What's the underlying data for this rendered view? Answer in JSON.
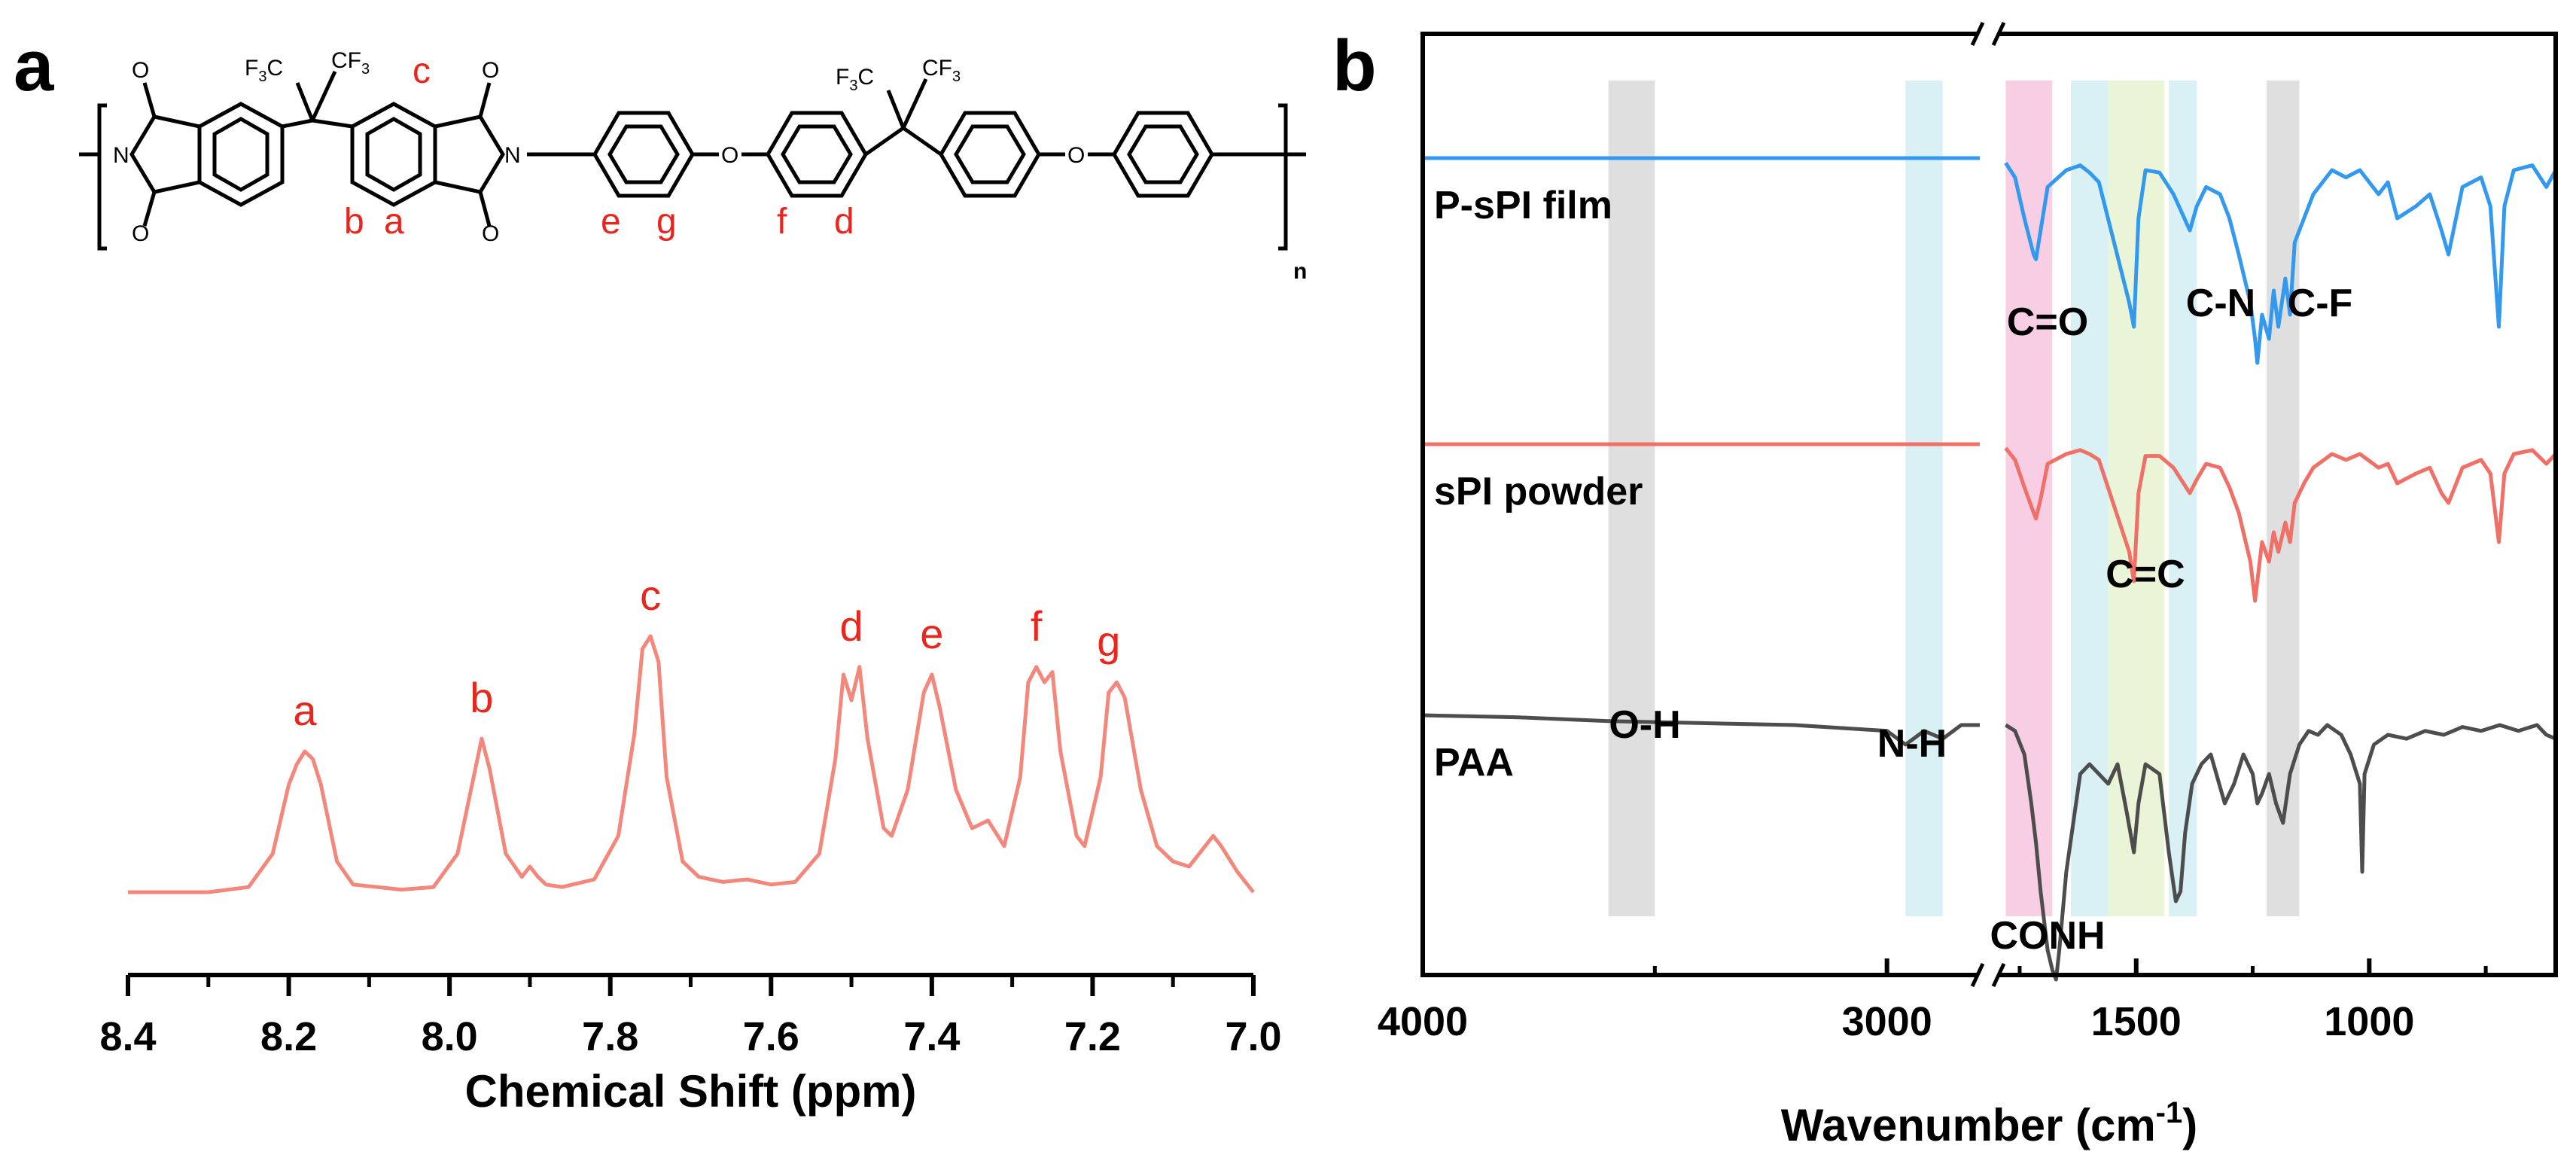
{
  "panels": {
    "a": {
      "letter": "a"
    },
    "b": {
      "letter": "b"
    }
  },
  "structure": {
    "proton_labels": [
      "c",
      "b",
      "a",
      "e",
      "g",
      "f",
      "d"
    ],
    "repeat_subscript": "n",
    "substituent": "CF3"
  },
  "chart_data": [
    {
      "type": "line",
      "xlabel": "Chemical Shift (ppm)",
      "ylabel": "",
      "xlim": [
        8.4,
        7.0
      ],
      "x_reversed": true,
      "xticks": [
        "8.4",
        "8.2",
        "8.0",
        "7.8",
        "7.6",
        "7.4",
        "7.2",
        "7.0"
      ],
      "grid": false,
      "series": [
        {
          "color": "#f4877c",
          "x": [
            8.4,
            8.3,
            8.25,
            8.22,
            8.2,
            8.19,
            8.18,
            8.17,
            8.16,
            8.14,
            8.12,
            8.09,
            8.06,
            8.02,
            7.99,
            7.97,
            7.96,
            7.95,
            7.93,
            7.91,
            7.9,
            7.89,
            7.88,
            7.86,
            7.82,
            7.79,
            7.77,
            7.76,
            7.75,
            7.74,
            7.73,
            7.71,
            7.69,
            7.66,
            7.63,
            7.6,
            7.57,
            7.54,
            7.52,
            7.51,
            7.5,
            7.49,
            7.48,
            7.46,
            7.45,
            7.43,
            7.41,
            7.4,
            7.39,
            7.37,
            7.35,
            7.33,
            7.31,
            7.29,
            7.28,
            7.27,
            7.26,
            7.25,
            7.24,
            7.22,
            7.21,
            7.19,
            7.18,
            7.17,
            7.16,
            7.14,
            7.12,
            7.1,
            7.08,
            7.06,
            7.05,
            7.04,
            7.02,
            7.0
          ],
          "y": [
            0.0,
            0.0,
            0.02,
            0.15,
            0.42,
            0.5,
            0.55,
            0.52,
            0.42,
            0.12,
            0.03,
            0.02,
            0.01,
            0.02,
            0.15,
            0.45,
            0.6,
            0.48,
            0.15,
            0.06,
            0.1,
            0.06,
            0.03,
            0.02,
            0.05,
            0.22,
            0.62,
            0.95,
            1.0,
            0.9,
            0.45,
            0.12,
            0.06,
            0.04,
            0.05,
            0.03,
            0.04,
            0.15,
            0.52,
            0.85,
            0.75,
            0.88,
            0.6,
            0.25,
            0.22,
            0.4,
            0.78,
            0.85,
            0.72,
            0.4,
            0.25,
            0.28,
            0.18,
            0.45,
            0.82,
            0.88,
            0.82,
            0.86,
            0.55,
            0.22,
            0.18,
            0.45,
            0.78,
            0.82,
            0.76,
            0.4,
            0.18,
            0.12,
            0.1,
            0.18,
            0.22,
            0.18,
            0.08,
            0.0
          ],
          "peak_labels": [
            {
              "x": 8.18,
              "label": "a"
            },
            {
              "x": 7.96,
              "label": "b"
            },
            {
              "x": 7.75,
              "label": "c"
            },
            {
              "x": 7.5,
              "label": "d"
            },
            {
              "x": 7.4,
              "label": "e"
            },
            {
              "x": 7.27,
              "label": "f"
            },
            {
              "x": 7.18,
              "label": "g"
            }
          ]
        }
      ]
    },
    {
      "type": "line",
      "xlabel": "Wavenumber (cm",
      "xlabel_superscript": "-1",
      "xlabel_suffix": ")",
      "ylabel": "",
      "x_reversed": true,
      "axis_break": true,
      "xlim_segments": [
        [
          4000,
          2800
        ],
        [
          1800,
          600
        ]
      ],
      "xticks": [
        "4000",
        "3000",
        "1500",
        "1000"
      ],
      "grid": false,
      "bands": [
        {
          "label": "O-H",
          "range": [
            3600,
            3500
          ],
          "color": "#d9d9d9"
        },
        {
          "label": "N-H",
          "range": [
            2960,
            2880
          ],
          "color": "#d2eef2"
        },
        {
          "label": "C=O",
          "range": [
            1780,
            1700
          ],
          "color": "#f7c6e0"
        },
        {
          "label": "CONH",
          "range": [
            1700,
            1680
          ],
          "color": "#f7c6e0"
        },
        {
          "label": "C=C",
          "range": [
            1640,
            1560
          ],
          "color": "#d2eef2"
        },
        {
          "label": "",
          "range": [
            1560,
            1440
          ],
          "color": "#e6f2cf"
        },
        {
          "label": "C-N",
          "range": [
            1430,
            1370
          ],
          "color": "#d2eef2"
        },
        {
          "label": "C-F",
          "range": [
            1220,
            1150
          ],
          "color": "#d9d9d9"
        }
      ],
      "series": [
        {
          "name": "P-sPI film",
          "color": "#3399ee",
          "x": [
            4000,
            2800,
            1780,
            1760,
            1740,
            1720,
            1715,
            1705,
            1690,
            1650,
            1620,
            1600,
            1580,
            1515,
            1505,
            1495,
            1480,
            1450,
            1420,
            1385,
            1370,
            1350,
            1320,
            1300,
            1280,
            1255,
            1245,
            1240,
            1230,
            1215,
            1205,
            1195,
            1180,
            1170,
            1160,
            1140,
            1120,
            1080,
            1050,
            1020,
            980,
            960,
            940,
            900,
            870,
            845,
            830,
            800,
            760,
            740,
            722,
            710,
            690,
            650,
            620,
            600
          ],
          "y": [
            0.0,
            0.0,
            -0.02,
            -0.08,
            -0.25,
            -0.4,
            -0.42,
            -0.3,
            -0.12,
            -0.05,
            -0.03,
            -0.06,
            -0.1,
            -0.6,
            -0.7,
            -0.25,
            -0.05,
            -0.06,
            -0.15,
            -0.3,
            -0.2,
            -0.12,
            -0.15,
            -0.25,
            -0.4,
            -0.6,
            -0.75,
            -0.85,
            -0.65,
            -0.75,
            -0.55,
            -0.7,
            -0.5,
            -0.65,
            -0.35,
            -0.25,
            -0.15,
            -0.05,
            -0.08,
            -0.05,
            -0.15,
            -0.1,
            -0.25,
            -0.2,
            -0.15,
            -0.3,
            -0.4,
            -0.12,
            -0.08,
            -0.2,
            -0.7,
            -0.2,
            -0.05,
            -0.03,
            -0.12,
            -0.05
          ]
        },
        {
          "name": "sPI powder",
          "color": "#f07068",
          "x": [
            4000,
            2800,
            1780,
            1760,
            1740,
            1720,
            1715,
            1705,
            1690,
            1650,
            1620,
            1600,
            1580,
            1515,
            1505,
            1495,
            1480,
            1450,
            1420,
            1385,
            1370,
            1350,
            1320,
            1300,
            1280,
            1255,
            1245,
            1240,
            1230,
            1215,
            1205,
            1195,
            1180,
            1170,
            1160,
            1140,
            1120,
            1080,
            1050,
            1020,
            980,
            960,
            940,
            900,
            870,
            845,
            830,
            800,
            760,
            740,
            722,
            710,
            690,
            650,
            620,
            600
          ],
          "y": [
            0.0,
            0.0,
            -0.02,
            -0.08,
            -0.22,
            -0.35,
            -0.38,
            -0.28,
            -0.1,
            -0.05,
            -0.03,
            -0.05,
            -0.08,
            -0.55,
            -0.7,
            -0.25,
            -0.06,
            -0.06,
            -0.12,
            -0.25,
            -0.18,
            -0.1,
            -0.12,
            -0.22,
            -0.35,
            -0.6,
            -0.8,
            -0.7,
            -0.5,
            -0.6,
            -0.45,
            -0.55,
            -0.4,
            -0.5,
            -0.3,
            -0.2,
            -0.12,
            -0.05,
            -0.08,
            -0.05,
            -0.12,
            -0.1,
            -0.2,
            -0.15,
            -0.12,
            -0.25,
            -0.3,
            -0.12,
            -0.08,
            -0.15,
            -0.5,
            -0.15,
            -0.05,
            -0.03,
            -0.1,
            -0.05
          ]
        },
        {
          "name": "PAA",
          "color": "#4d4d4d",
          "x": [
            4000,
            3800,
            3600,
            3400,
            3200,
            3000,
            2960,
            2920,
            2880,
            2840,
            2800,
            1780,
            1760,
            1740,
            1725,
            1715,
            1705,
            1690,
            1680,
            1672,
            1665,
            1650,
            1620,
            1600,
            1560,
            1540,
            1520,
            1505,
            1495,
            1480,
            1450,
            1430,
            1415,
            1405,
            1395,
            1380,
            1360,
            1340,
            1310,
            1290,
            1270,
            1250,
            1240,
            1230,
            1215,
            1200,
            1185,
            1170,
            1150,
            1130,
            1110,
            1090,
            1060,
            1040,
            1020,
            1015,
            1010,
            990,
            960,
            920,
            880,
            840,
            800,
            760,
            720,
            680,
            640,
            620,
            600
          ],
          "y": [
            0.0,
            -0.01,
            -0.03,
            -0.04,
            -0.05,
            -0.08,
            -0.15,
            -0.08,
            -0.12,
            -0.05,
            -0.05,
            -0.05,
            -0.08,
            -0.2,
            -0.45,
            -0.65,
            -0.9,
            -1.2,
            -1.3,
            -1.35,
            -1.2,
            -0.8,
            -0.3,
            -0.25,
            -0.35,
            -0.25,
            -0.5,
            -0.7,
            -0.45,
            -0.25,
            -0.3,
            -0.7,
            -0.95,
            -0.9,
            -0.6,
            -0.35,
            -0.25,
            -0.2,
            -0.45,
            -0.35,
            -0.2,
            -0.3,
            -0.45,
            -0.4,
            -0.3,
            -0.45,
            -0.55,
            -0.3,
            -0.15,
            -0.08,
            -0.1,
            -0.05,
            -0.1,
            -0.2,
            -0.35,
            -0.8,
            -0.3,
            -0.15,
            -0.1,
            -0.12,
            -0.08,
            -0.1,
            -0.06,
            -0.08,
            -0.05,
            -0.08,
            -0.05,
            -0.1,
            -0.12
          ]
        }
      ]
    }
  ]
}
